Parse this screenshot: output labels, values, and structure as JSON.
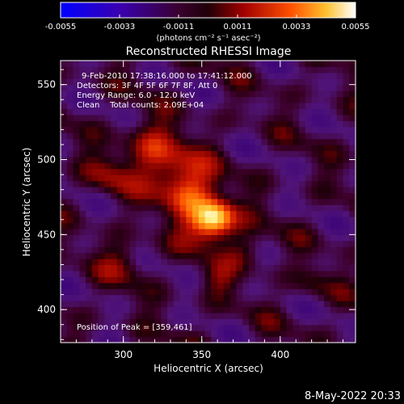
{
  "chart_data": {
    "type": "heatmap",
    "title": "Reconstructed RHESSI Image",
    "xlabel": "Heliocentric X (arcsec)",
    "ylabel": "Heliocentric Y (arcsec)",
    "xlim": [
      260,
      448
    ],
    "ylim": [
      378,
      566
    ],
    "xticks": [
      300,
      350,
      400
    ],
    "yticks": [
      400,
      450,
      500,
      550
    ],
    "colorbar": {
      "range": [
        -0.0055,
        0.0055
      ],
      "ticks": [
        "-0.0055",
        "-0.0033",
        "-0.0011",
        "0.0011",
        "0.0033",
        "0.0055"
      ],
      "unit_label": "(photons cm⁻² s⁻¹ asec⁻²)",
      "colors": [
        "#0000ff",
        "#5a008a",
        "#2a0010",
        "#9a0000",
        "#ff5a00",
        "#ffcc33",
        "#ffffff"
      ]
    },
    "annotations": [
      "9-Feb-2010 17:38:16.000 to 17:41:12.000",
      "Detectors: 3F 4F 5F 6F 7F 8F, Att 0",
      "Energy Range: 6.0 - 12.0 keV",
      "Clean    Total counts: 2.09E+04"
    ],
    "peak_label": "Position of Peak = [359,461]",
    "peak": [
      359,
      461
    ],
    "peak_value": 0.0055
  },
  "timestamp": "8-May-2022 20:33"
}
